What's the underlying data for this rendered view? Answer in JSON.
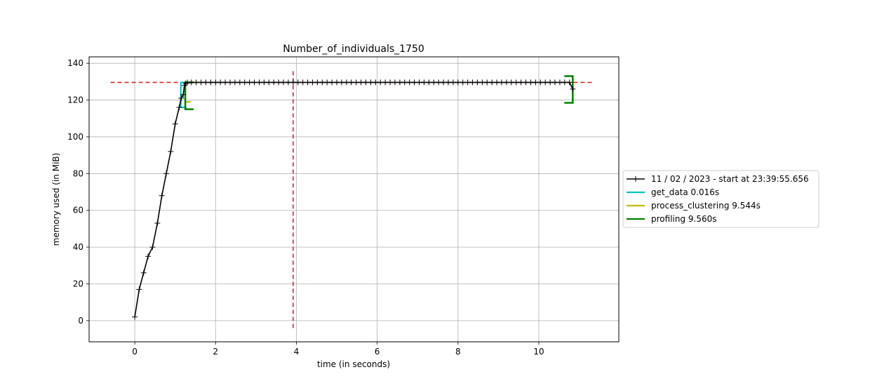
{
  "chart_data": {
    "type": "line",
    "title": "Number_of_individuals_1750",
    "xlabel": "time (in seconds)",
    "ylabel": "memory used (in MiB)",
    "xlim": [
      -1.13,
      11.98
    ],
    "ylim": [
      -11.5,
      143.5
    ],
    "xticks": [
      0,
      2,
      4,
      6,
      8,
      10
    ],
    "yticks": [
      0,
      20,
      40,
      60,
      80,
      100,
      120,
      140
    ],
    "grid": true,
    "legend_position": "right",
    "series": [
      {
        "name": "11 / 02 / 2023 - start at 23:39:55.656",
        "color": "#000000",
        "marker": "+",
        "x": [
          0.0,
          0.11,
          0.22,
          0.33,
          0.44,
          0.56,
          0.67,
          0.78,
          0.89,
          1.0,
          1.1,
          1.15,
          1.2,
          1.23,
          1.26,
          1.3,
          1.4,
          1.52,
          1.64,
          1.76,
          1.88,
          2.0,
          2.12,
          2.24,
          2.36,
          2.48,
          2.6,
          2.72,
          2.84,
          2.96,
          3.08,
          3.2,
          3.32,
          3.44,
          3.56,
          3.68,
          3.8,
          3.92,
          4.04,
          4.16,
          4.28,
          4.4,
          4.52,
          4.64,
          4.76,
          4.88,
          5.0,
          5.12,
          5.24,
          5.36,
          5.48,
          5.6,
          5.72,
          5.84,
          5.96,
          6.08,
          6.2,
          6.32,
          6.44,
          6.56,
          6.68,
          6.8,
          6.92,
          7.04,
          7.16,
          7.28,
          7.4,
          7.52,
          7.64,
          7.76,
          7.88,
          8.0,
          8.12,
          8.24,
          8.36,
          8.48,
          8.6,
          8.72,
          8.84,
          8.96,
          9.08,
          9.2,
          9.32,
          9.44,
          9.56,
          9.68,
          9.8,
          9.92,
          10.04,
          10.16,
          10.28,
          10.4,
          10.52,
          10.64,
          10.76,
          10.84
        ],
        "y": [
          2,
          17,
          26,
          35,
          40,
          53,
          68,
          80,
          92,
          107,
          116,
          121,
          123,
          128,
          129,
          129.5,
          129.6,
          129.6,
          129.6,
          129.6,
          129.6,
          129.6,
          129.6,
          129.6,
          129.6,
          129.6,
          129.6,
          129.6,
          129.6,
          129.6,
          129.6,
          129.6,
          129.6,
          129.6,
          129.6,
          129.6,
          129.6,
          129.6,
          129.6,
          129.6,
          129.6,
          129.6,
          129.6,
          129.6,
          129.6,
          129.6,
          129.6,
          129.6,
          129.6,
          129.6,
          129.6,
          129.6,
          129.6,
          129.6,
          129.6,
          129.6,
          129.6,
          129.6,
          129.6,
          129.6,
          129.6,
          129.6,
          129.6,
          129.6,
          129.6,
          129.6,
          129.6,
          129.6,
          129.6,
          129.6,
          129.6,
          129.6,
          129.6,
          129.6,
          129.6,
          129.6,
          129.6,
          129.6,
          129.6,
          129.6,
          129.6,
          129.6,
          129.6,
          129.6,
          129.6,
          129.6,
          129.6,
          129.6,
          129.6,
          129.6,
          129.6,
          129.6,
          129.6,
          129.6,
          129.6,
          126
        ]
      },
      {
        "name": "get_data 0.016s",
        "color": "#00bfbf",
        "x": 1.14,
        "y_low": 116,
        "y_high": 129.6
      },
      {
        "name": "process_clustering 9.544s",
        "color": "#bfbf00",
        "x": 1.25,
        "y_low": 119,
        "y_high": 129.6
      },
      {
        "name": "profiling 9.560s",
        "color": "#008000",
        "x_start": 1.25,
        "x_end": 10.84,
        "y_low": 115,
        "y_high": 133
      }
    ],
    "reference_lines": {
      "color": "#d62728",
      "horizontal_y": 129.6,
      "horizontal_x_range": [
        -0.6,
        11.35
      ],
      "vertical_x": 3.92,
      "vertical_y_range": [
        -4,
        136
      ]
    }
  }
}
